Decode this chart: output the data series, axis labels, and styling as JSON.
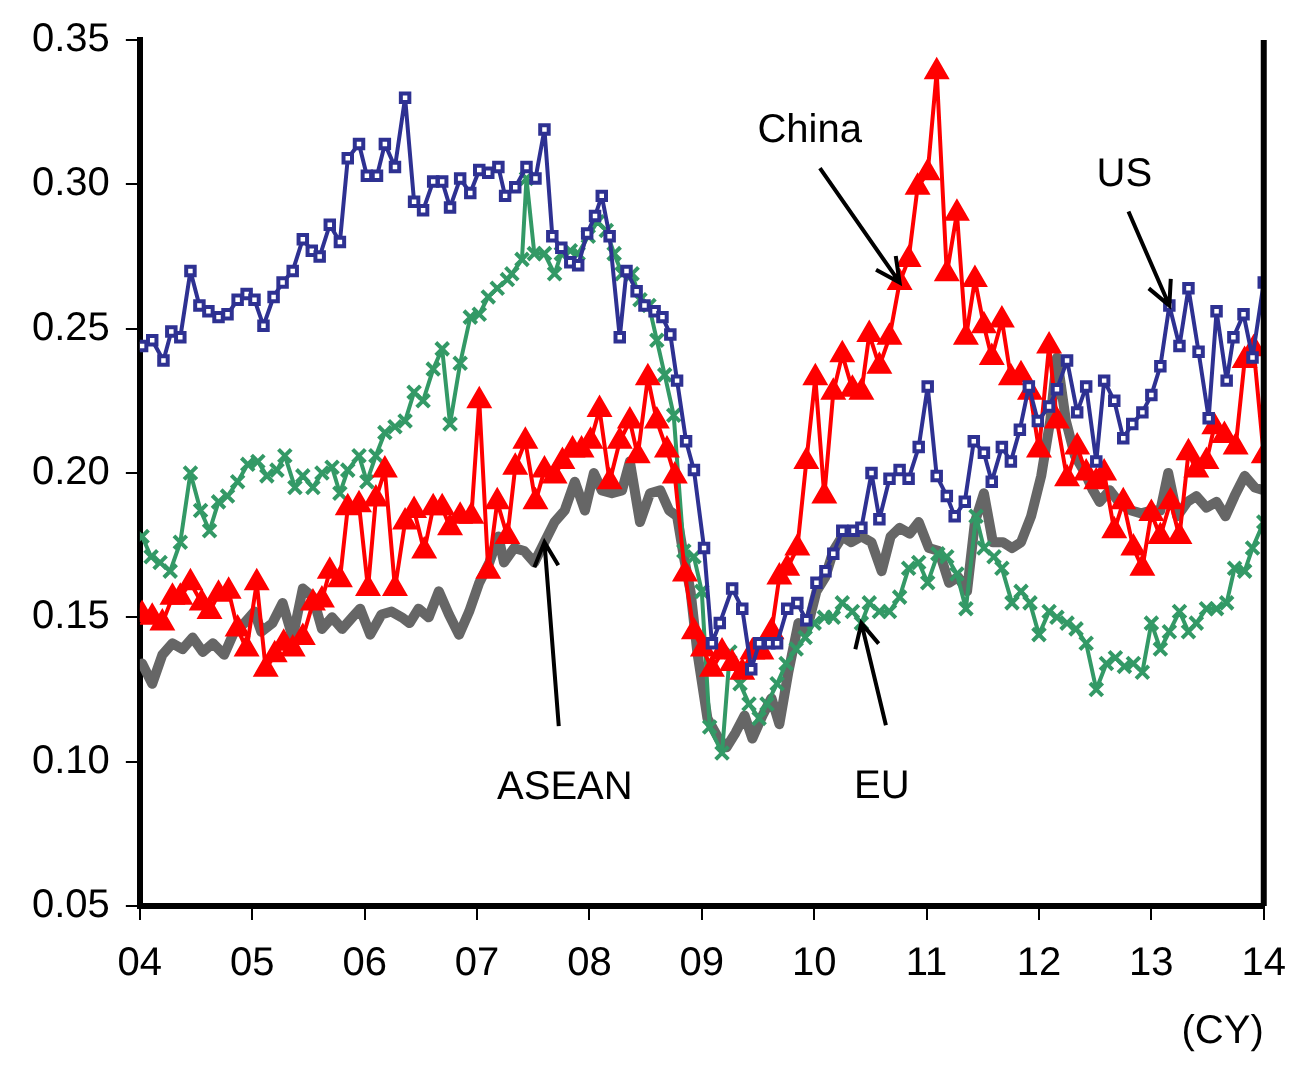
{
  "chart_data": {
    "type": "line",
    "xlabel": "(CY)",
    "xlim": [
      4,
      14
    ],
    "xticks": [
      {
        "value": 4,
        "label": "04"
      },
      {
        "value": 5,
        "label": "05"
      },
      {
        "value": 6,
        "label": "06"
      },
      {
        "value": 7,
        "label": "07"
      },
      {
        "value": 8,
        "label": "08"
      },
      {
        "value": 9,
        "label": "09"
      },
      10,
      11,
      12,
      13,
      14
    ],
    "ylim": [
      0.05,
      0.35
    ],
    "yticks": [
      0.05,
      {
        "value": 0.1,
        "label": "0.10"
      },
      0.15,
      {
        "value": 0.2,
        "label": "0.20"
      },
      0.25,
      {
        "value": 0.3,
        "label": "0.30"
      },
      0.35
    ],
    "grid": false,
    "legend": false,
    "annotations": [
      {
        "text": "China",
        "x": 10.76,
        "y": 0.266
      },
      {
        "text": "US",
        "x": 13.16,
        "y": 0.258
      },
      {
        "text": "ASEAN",
        "x": 7.6,
        "y": 0.176
      },
      {
        "text": "EU",
        "x": 10.42,
        "y": 0.148
      }
    ],
    "series": [
      {
        "color": "#2e3192",
        "marker": "square",
        "x": [
          4.02,
          4.11,
          4.21,
          4.28,
          4.36,
          4.45,
          4.53,
          4.61,
          4.7,
          4.78,
          4.87,
          4.95,
          5.02,
          5.1,
          5.19,
          5.27,
          5.36,
          5.45,
          5.53,
          5.6,
          5.69,
          5.78,
          5.85,
          5.95,
          6.02,
          6.11,
          6.18,
          6.27,
          6.36,
          6.44,
          6.52,
          6.61,
          6.69,
          6.76,
          6.85,
          6.94,
          7.02,
          7.1,
          7.19,
          7.25,
          7.34,
          7.44,
          7.52,
          7.6,
          7.67,
          7.75,
          7.83,
          7.9,
          7.98,
          8.05,
          8.11,
          8.18,
          8.27,
          8.33,
          8.42,
          8.49,
          8.58,
          8.65,
          8.72,
          8.78,
          8.86,
          8.93,
          9.02,
          9.09,
          9.16,
          9.27,
          9.36,
          9.44,
          9.51,
          9.6,
          9.67,
          9.76,
          9.85,
          9.93,
          10.02,
          10.1,
          10.17,
          10.25,
          10.35,
          10.42,
          10.51,
          10.58,
          10.67,
          10.76,
          10.84,
          10.93,
          11.01,
          11.09,
          11.18,
          11.25,
          11.34,
          11.42,
          11.51,
          11.58,
          11.67,
          11.75,
          11.83,
          11.91,
          11.99,
          12.09,
          12.16,
          12.25,
          12.34,
          12.42,
          12.51,
          12.58,
          12.67,
          12.75,
          12.83,
          12.92,
          13.0,
          13.08,
          13.16,
          13.25,
          13.33,
          13.42,
          13.51,
          13.58,
          13.67,
          13.73,
          13.82,
          13.9,
          14.0
        ],
        "values": [
          0.244,
          0.246,
          0.239,
          0.249,
          0.247,
          0.27,
          0.258,
          0.256,
          0.254,
          0.255,
          0.26,
          0.262,
          0.26,
          0.251,
          0.261,
          0.266,
          0.27,
          0.281,
          0.277,
          0.275,
          0.286,
          0.28,
          0.309,
          0.314,
          0.303,
          0.303,
          0.314,
          0.306,
          0.33,
          0.294,
          0.291,
          0.301,
          0.301,
          0.292,
          0.302,
          0.297,
          0.305,
          0.304,
          0.306,
          0.296,
          0.299,
          0.306,
          0.302,
          0.319,
          0.282,
          0.278,
          0.273,
          0.272,
          0.283,
          0.289,
          0.296,
          0.282,
          0.247,
          0.27,
          0.263,
          0.258,
          0.256,
          0.254,
          0.248,
          0.232,
          0.211,
          0.201,
          0.174,
          0.141,
          0.148,
          0.16,
          0.153,
          0.132,
          0.141,
          0.141,
          0.141,
          0.153,
          0.155,
          0.149,
          0.162,
          0.166,
          0.172,
          0.18,
          0.18,
          0.181,
          0.2,
          0.184,
          0.198,
          0.201,
          0.198,
          0.209,
          0.23,
          0.199,
          0.192,
          0.185,
          0.19,
          0.211,
          0.207,
          0.197,
          0.209,
          0.204,
          0.215,
          0.23,
          0.218,
          0.223,
          0.229,
          0.239,
          0.221,
          0.23,
          0.204,
          0.232,
          0.225,
          0.212,
          0.217,
          0.221,
          0.227,
          0.237,
          0.258,
          0.244,
          0.264,
          0.242,
          0.219,
          0.256,
          0.232,
          0.247,
          0.255,
          0.24,
          0.266
        ]
      },
      {
        "color": "#ff0000",
        "marker": "triangle",
        "x": [
          4.02,
          4.11,
          4.2,
          4.29,
          4.36,
          4.45,
          4.55,
          4.62,
          4.7,
          4.79,
          4.87,
          4.95,
          5.04,
          5.12,
          5.2,
          5.28,
          5.36,
          5.45,
          5.54,
          5.62,
          5.69,
          5.78,
          5.85,
          5.95,
          6.03,
          6.1,
          6.18,
          6.27,
          6.36,
          6.44,
          6.53,
          6.61,
          6.69,
          6.76,
          6.85,
          6.95,
          7.02,
          7.1,
          7.18,
          7.27,
          7.34,
          7.43,
          7.52,
          7.6,
          7.69,
          7.76,
          7.85,
          7.93,
          8.01,
          8.09,
          8.18,
          8.27,
          8.36,
          8.43,
          8.52,
          8.6,
          8.69,
          8.76,
          8.85,
          8.93,
          9.01,
          9.09,
          9.18,
          9.27,
          9.36,
          9.45,
          9.53,
          9.62,
          9.69,
          9.76,
          9.85,
          9.93,
          10.01,
          10.09,
          10.17,
          10.25,
          10.34,
          10.42,
          10.49,
          10.58,
          10.67,
          10.76,
          10.84,
          10.92,
          11.01,
          11.09,
          11.18,
          11.27,
          11.35,
          11.43,
          11.51,
          11.58,
          11.67,
          11.75,
          11.84,
          11.92,
          12.0,
          12.09,
          12.16,
          12.25,
          12.34,
          12.42,
          12.51,
          12.58,
          12.67,
          12.75,
          12.84,
          12.92,
          13.0,
          13.08,
          13.17,
          13.25,
          13.33,
          13.4,
          13.49,
          13.56,
          13.65,
          13.75,
          13.83,
          13.91,
          14.0
        ],
        "values": [
          0.151,
          0.15,
          0.148,
          0.157,
          0.157,
          0.162,
          0.155,
          0.152,
          0.158,
          0.159,
          0.146,
          0.139,
          0.162,
          0.132,
          0.137,
          0.141,
          0.139,
          0.143,
          0.155,
          0.156,
          0.166,
          0.163,
          0.188,
          0.189,
          0.16,
          0.191,
          0.201,
          0.16,
          0.183,
          0.187,
          0.173,
          0.188,
          0.188,
          0.181,
          0.185,
          0.185,
          0.225,
          0.166,
          0.19,
          0.178,
          0.202,
          0.211,
          0.19,
          0.201,
          0.199,
          0.204,
          0.208,
          0.208,
          0.211,
          0.222,
          0.197,
          0.211,
          0.218,
          0.206,
          0.233,
          0.218,
          0.208,
          0.199,
          0.165,
          0.145,
          0.139,
          0.132,
          0.138,
          0.134,
          0.131,
          0.138,
          0.138,
          0.145,
          0.164,
          0.167,
          0.174,
          0.204,
          0.233,
          0.192,
          0.228,
          0.241,
          0.229,
          0.228,
          0.248,
          0.237,
          0.247,
          0.266,
          0.274,
          0.299,
          0.304,
          0.339,
          0.269,
          0.29,
          0.247,
          0.267,
          0.251,
          0.24,
          0.253,
          0.233,
          0.234,
          0.228,
          0.208,
          0.244,
          0.218,
          0.198,
          0.209,
          0.2,
          0.197,
          0.2,
          0.18,
          0.19,
          0.174,
          0.167,
          0.186,
          0.178,
          0.19,
          0.178,
          0.207,
          0.201,
          0.204,
          0.216,
          0.213,
          0.209,
          0.239,
          0.243,
          0.206
        ]
      },
      {
        "color": "#339966",
        "marker": "cross",
        "x": [
          4.02,
          4.1,
          4.18,
          4.27,
          4.36,
          4.45,
          4.54,
          4.62,
          4.7,
          4.78,
          4.87,
          4.96,
          5.05,
          5.13,
          5.22,
          5.29,
          5.38,
          5.45,
          5.54,
          5.62,
          5.71,
          5.78,
          5.85,
          5.95,
          6.02,
          6.1,
          6.18,
          6.27,
          6.36,
          6.44,
          6.52,
          6.61,
          6.69,
          6.76,
          6.85,
          6.94,
          7.02,
          7.1,
          7.18,
          7.27,
          7.31,
          7.4,
          7.44,
          7.51,
          7.6,
          7.69,
          7.75,
          7.83,
          7.9,
          7.99,
          8.07,
          8.15,
          8.22,
          8.29,
          8.38,
          8.45,
          8.53,
          8.6,
          8.67,
          8.75,
          8.84,
          8.93,
          9.0,
          9.07,
          9.18,
          9.25,
          9.34,
          9.42,
          9.51,
          9.58,
          9.67,
          9.75,
          9.84,
          9.92,
          10.0,
          10.09,
          10.17,
          10.25,
          10.34,
          10.42,
          10.49,
          10.58,
          10.67,
          10.76,
          10.84,
          10.93,
          11.01,
          11.1,
          11.18,
          11.27,
          11.35,
          11.44,
          11.51,
          11.6,
          11.67,
          11.76,
          11.84,
          11.92,
          12.0,
          12.09,
          12.16,
          12.25,
          12.33,
          12.42,
          12.51,
          12.6,
          12.68,
          12.76,
          12.84,
          12.92,
          13.0,
          13.08,
          13.16,
          13.25,
          13.33,
          13.4,
          13.49,
          13.58,
          13.67,
          13.74,
          13.83,
          13.9,
          14.0
        ],
        "values": [
          0.178,
          0.171,
          0.169,
          0.166,
          0.176,
          0.2,
          0.187,
          0.18,
          0.19,
          0.192,
          0.197,
          0.203,
          0.204,
          0.199,
          0.201,
          0.206,
          0.195,
          0.199,
          0.195,
          0.2,
          0.202,
          0.193,
          0.201,
          0.206,
          0.197,
          0.206,
          0.214,
          0.216,
          0.218,
          0.228,
          0.225,
          0.236,
          0.243,
          0.217,
          0.238,
          0.254,
          0.255,
          0.261,
          0.264,
          0.267,
          0.269,
          0.274,
          0.302,
          0.276,
          0.276,
          0.269,
          0.276,
          0.277,
          0.276,
          0.282,
          0.287,
          0.284,
          0.276,
          0.269,
          0.269,
          0.26,
          0.258,
          0.246,
          0.234,
          0.22,
          0.173,
          0.171,
          0.159,
          0.112,
          0.103,
          0.138,
          0.127,
          0.12,
          0.115,
          0.12,
          0.127,
          0.134,
          0.139,
          0.143,
          0.148,
          0.15,
          0.15,
          0.155,
          0.152,
          0.148,
          0.155,
          0.152,
          0.152,
          0.157,
          0.167,
          0.169,
          0.162,
          0.172,
          0.171,
          0.165,
          0.153,
          0.185,
          0.174,
          0.171,
          0.167,
          0.155,
          0.159,
          0.155,
          0.144,
          0.152,
          0.15,
          0.148,
          0.146,
          0.141,
          0.125,
          0.134,
          0.136,
          0.133,
          0.134,
          0.131,
          0.148,
          0.139,
          0.145,
          0.152,
          0.145,
          0.148,
          0.153,
          0.153,
          0.155,
          0.167,
          0.166,
          0.174,
          0.183
        ]
      },
      {
        "color": "#666666",
        "marker": "none",
        "x": [
          4.02,
          4.11,
          4.2,
          4.29,
          4.38,
          4.47,
          4.56,
          4.65,
          4.75,
          4.84,
          4.93,
          5.02,
          5.08,
          5.18,
          5.27,
          5.36,
          5.45,
          5.54,
          5.62,
          5.71,
          5.8,
          5.89,
          5.96,
          6.05,
          6.15,
          6.24,
          6.33,
          6.4,
          6.48,
          6.57,
          6.66,
          6.75,
          6.84,
          6.93,
          7.02,
          7.11,
          7.19,
          7.24,
          7.33,
          7.42,
          7.51,
          7.6,
          7.69,
          7.78,
          7.87,
          7.96,
          8.04,
          8.11,
          8.2,
          8.29,
          8.36,
          8.45,
          8.54,
          8.63,
          8.71,
          8.78,
          8.84,
          8.9,
          8.96,
          9.05,
          9.15,
          9.22,
          9.3,
          9.38,
          9.45,
          9.54,
          9.62,
          9.69,
          9.77,
          9.86,
          9.93,
          10.02,
          10.1,
          10.17,
          10.25,
          10.33,
          10.42,
          10.51,
          10.6,
          10.68,
          10.76,
          10.85,
          10.93,
          11.02,
          11.11,
          11.2,
          11.28,
          11.36,
          11.43,
          11.51,
          11.59,
          11.68,
          11.76,
          11.84,
          11.93,
          12.02,
          12.1,
          12.16,
          12.24,
          12.32,
          12.41,
          12.48,
          12.54,
          12.63,
          12.73,
          12.82,
          12.91,
          13.0,
          13.08,
          13.15,
          13.23,
          13.32,
          13.4,
          13.49,
          13.58,
          13.66,
          13.74,
          13.83,
          13.92,
          14.0
        ],
        "values": [
          0.134,
          0.127,
          0.137,
          0.141,
          0.139,
          0.143,
          0.138,
          0.141,
          0.137,
          0.145,
          0.148,
          0.152,
          0.145,
          0.148,
          0.155,
          0.143,
          0.16,
          0.157,
          0.146,
          0.15,
          0.146,
          0.15,
          0.153,
          0.144,
          0.151,
          0.152,
          0.15,
          0.148,
          0.153,
          0.15,
          0.159,
          0.151,
          0.144,
          0.152,
          0.162,
          0.169,
          0.178,
          0.169,
          0.174,
          0.173,
          0.169,
          0.176,
          0.183,
          0.187,
          0.197,
          0.187,
          0.2,
          0.194,
          0.193,
          0.194,
          0.204,
          0.183,
          0.193,
          0.194,
          0.187,
          0.185,
          0.171,
          0.159,
          0.138,
          0.115,
          0.108,
          0.105,
          0.11,
          0.116,
          0.108,
          0.116,
          0.122,
          0.113,
          0.131,
          0.148,
          0.145,
          0.159,
          0.164,
          0.173,
          0.178,
          0.176,
          0.178,
          0.176,
          0.166,
          0.178,
          0.181,
          0.179,
          0.183,
          0.174,
          0.173,
          0.162,
          0.164,
          0.159,
          0.183,
          0.193,
          0.176,
          0.176,
          0.174,
          0.176,
          0.185,
          0.199,
          0.218,
          0.24,
          0.218,
          0.206,
          0.2,
          0.194,
          0.19,
          0.194,
          0.189,
          0.187,
          0.186,
          0.187,
          0.187,
          0.2,
          0.185,
          0.19,
          0.192,
          0.188,
          0.19,
          0.185,
          0.192,
          0.199,
          0.195,
          0.194
        ]
      }
    ]
  }
}
